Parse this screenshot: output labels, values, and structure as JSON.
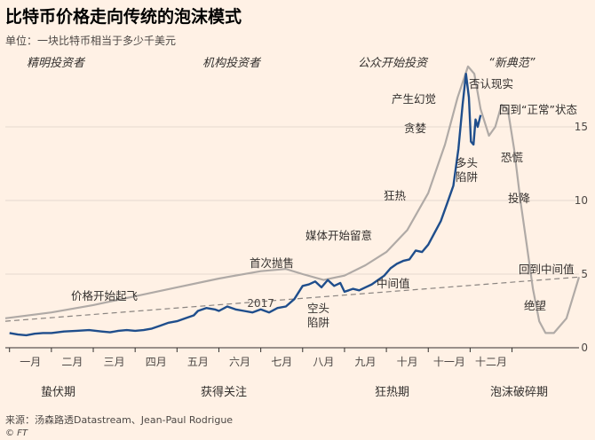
{
  "header": {
    "title": "比特币价格走向传统的泡沫模式",
    "subtitle": "单位：一块比特币相当于多少千美元"
  },
  "footer": {
    "source": "来源：汤森路透Datastream、Jean-Paul Rodrigue",
    "logo": "© FT"
  },
  "colors": {
    "background": "#fff1e5",
    "price_line": "#1f4e8c",
    "model_curve": "#b0aaa6",
    "mean_line": "#8a8480",
    "grid": "#e6d9ce"
  },
  "chart_data": {
    "type": "line",
    "ylim": [
      0,
      20
    ],
    "yticks": [
      0,
      5,
      10,
      15
    ],
    "ytick_labels": [
      "0",
      "5",
      "10",
      "15"
    ],
    "x_months": [
      "一月",
      "二月",
      "三月",
      "四月",
      "五月",
      "六月",
      "七月",
      "八月",
      "九月",
      "十月",
      "十一月",
      "十二月"
    ],
    "year_label": "2017",
    "series": [
      {
        "kind": "bitcoin-price",
        "x": [
          1,
          1.2,
          1.4,
          1.6,
          1.8,
          2,
          2.3,
          2.6,
          2.9,
          3.2,
          3.4,
          3.6,
          3.8,
          4,
          4.2,
          4.4,
          4.6,
          4.8,
          5,
          5.2,
          5.4,
          5.5,
          5.7,
          5.9,
          6,
          6.2,
          6.4,
          6.6,
          6.8,
          7,
          7.2,
          7.4,
          7.6,
          7.8,
          8,
          8.15,
          8.3,
          8.45,
          8.6,
          8.75,
          8.9,
          9,
          9.1,
          9.2,
          9.35,
          9.5,
          9.65,
          9.8,
          9.95,
          10.1,
          10.25,
          10.4,
          10.55,
          10.7,
          10.85,
          11,
          11.15,
          11.3,
          11.45,
          11.6,
          11.72,
          11.82,
          11.9,
          11.97,
          12.02,
          12.08,
          12.13,
          12.18,
          12.25
        ],
        "y": [
          1,
          0.9,
          0.85,
          0.95,
          1.0,
          1.0,
          1.1,
          1.15,
          1.2,
          1.1,
          1.05,
          1.15,
          1.2,
          1.15,
          1.2,
          1.3,
          1.5,
          1.7,
          1.8,
          2.0,
          2.2,
          2.5,
          2.7,
          2.6,
          2.5,
          2.8,
          2.6,
          2.5,
          2.4,
          2.6,
          2.4,
          2.7,
          2.8,
          3.3,
          4.2,
          4.3,
          4.5,
          4.1,
          4.6,
          4.2,
          4.4,
          3.8,
          3.9,
          4.0,
          3.9,
          4.1,
          4.3,
          4.6,
          4.9,
          5.4,
          5.7,
          5.9,
          6.0,
          6.6,
          6.5,
          7.0,
          7.8,
          8.6,
          9.8,
          11.0,
          13.5,
          16.5,
          18.6,
          17.0,
          14.0,
          13.8,
          15.5,
          15.0,
          15.8
        ]
      },
      {
        "kind": "bubble-model",
        "x": [
          0.9,
          2,
          3,
          4,
          5,
          6,
          7,
          7.6,
          8,
          8.5,
          9,
          9.5,
          10,
          10.5,
          11,
          11.4,
          11.7,
          11.95,
          12.1,
          12.25,
          12.45,
          12.6,
          12.75,
          12.9,
          13.05,
          13.2,
          13.35,
          13.5,
          13.65,
          13.8,
          14,
          14.3,
          14.6
        ],
        "y": [
          2.0,
          2.4,
          2.9,
          3.5,
          4.1,
          4.7,
          5.2,
          5.35,
          5.0,
          4.6,
          4.9,
          5.6,
          6.5,
          8.0,
          10.5,
          13.8,
          17.0,
          19.1,
          18.6,
          16.2,
          14.4,
          15.0,
          16.5,
          16.2,
          13.5,
          10.0,
          7.0,
          4.0,
          1.8,
          1.0,
          1.0,
          2.0,
          4.8
        ]
      },
      {
        "kind": "mean-line",
        "x": [
          0.9,
          14.6
        ],
        "y": [
          1.8,
          4.8
        ]
      }
    ],
    "phases_top": [
      "精明投资者",
      "机构投资者",
      "公众开始投资",
      "“新典范”"
    ],
    "phases_bottom": [
      "蛰伏期",
      "获得关注",
      "狂热期",
      "泡沫破碎期"
    ],
    "annotations": [
      "价格开始起飞",
      "首次抛售",
      "媒体开始留意",
      "中间值",
      "空头",
      "陷阱",
      "狂热",
      "贪婪",
      "产生幻觉",
      "否认现实",
      "回到“正常”状态",
      "多头",
      "陷阱",
      "恐慌",
      "投降",
      "回到中间值",
      "绝望"
    ]
  }
}
